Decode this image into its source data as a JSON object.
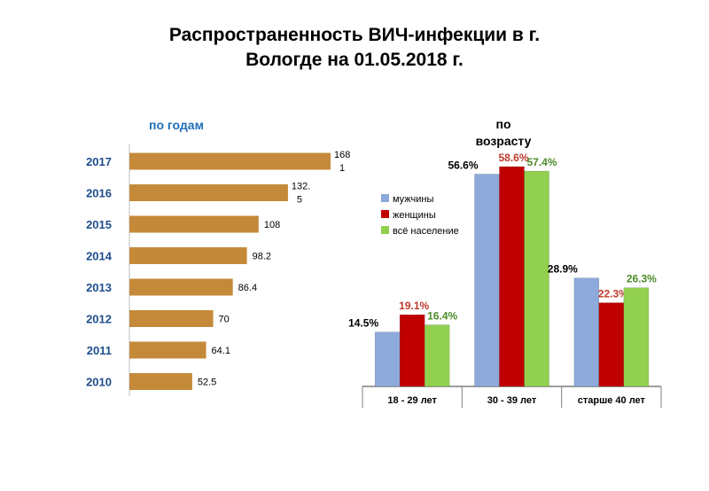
{
  "title": {
    "line1": "Распространенность ВИЧ-инфекции в г.",
    "line2": "Вологде на 01.05.2018 г."
  },
  "chart_data": [
    {
      "type": "bar",
      "orientation": "horizontal",
      "subtitle": "по годам",
      "categories": [
        "2017",
        "2016",
        "2015",
        "2014",
        "2013",
        "2012",
        "2011",
        "2010"
      ],
      "values": [
        168.1,
        132.5,
        108,
        98.2,
        86.4,
        70,
        64.1,
        52.5
      ],
      "value_labels": [
        [
          "168",
          "1"
        ],
        [
          "132.",
          "5"
        ],
        [
          "108"
        ],
        [
          "98.2"
        ],
        [
          "86.4"
        ],
        [
          "70"
        ],
        [
          "64.1"
        ],
        [
          "52.5"
        ]
      ],
      "bar_color": "#c48a3a"
    },
    {
      "type": "bar",
      "subtitle": [
        "по",
        "возрасту"
      ],
      "categories": [
        "18 - 29 лет",
        "30 - 39 лет",
        "старше 40 лет"
      ],
      "series": [
        {
          "name": "мужчины",
          "values": [
            14.5,
            56.6,
            28.9
          ],
          "labels": [
            "14.5%",
            "56.6%",
            "28.9%"
          ],
          "color": "#8eaadb",
          "label_color": "#000000"
        },
        {
          "name": "женщины",
          "values": [
            19.1,
            58.6,
            22.3
          ],
          "labels": [
            "19.1%",
            "58.6%",
            "22.3%"
          ],
          "color": "#c00000",
          "label_color": "#c0392b"
        },
        {
          "name": "всё население",
          "values": [
            16.4,
            57.4,
            26.3
          ],
          "labels": [
            "16.4%",
            "57.4%",
            "26.3%"
          ],
          "color": "#92d050",
          "label_color": "#4e8a2a"
        }
      ],
      "legend_position": "upper-left"
    }
  ]
}
